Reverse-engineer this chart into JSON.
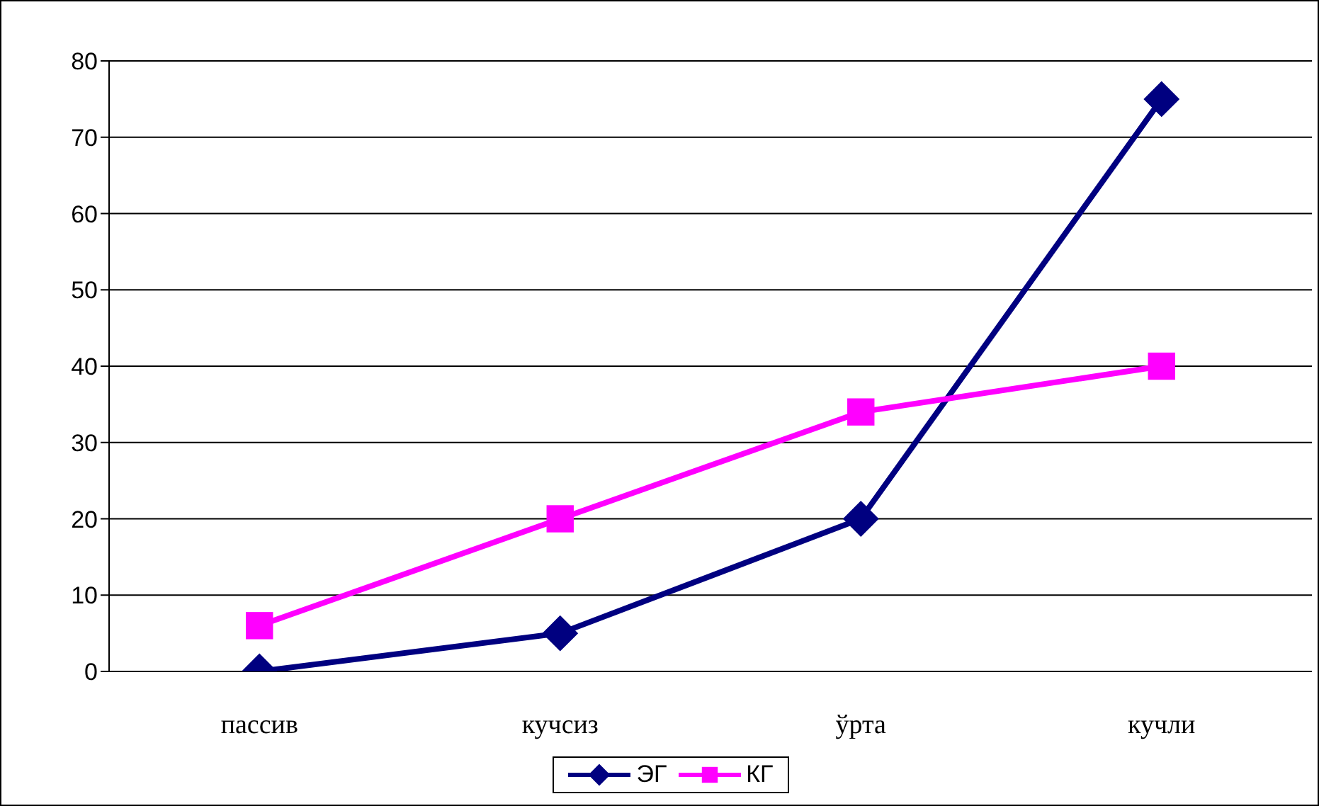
{
  "chart_data": {
    "type": "line",
    "categories": [
      "пассив",
      "кучсиз",
      "ўрта",
      "кучли"
    ],
    "series": [
      {
        "name": "ЭГ",
        "color": "#000080",
        "marker": "diamond",
        "values": [
          0,
          5,
          20,
          75
        ]
      },
      {
        "name": "КГ",
        "color": "#ff00ff",
        "marker": "square",
        "values": [
          6,
          20,
          34,
          40
        ]
      }
    ],
    "ylim": [
      0,
      80
    ],
    "yticks": [
      0,
      10,
      20,
      30,
      40,
      50,
      60,
      70,
      80
    ],
    "grid": "y",
    "legend": "bottom"
  }
}
